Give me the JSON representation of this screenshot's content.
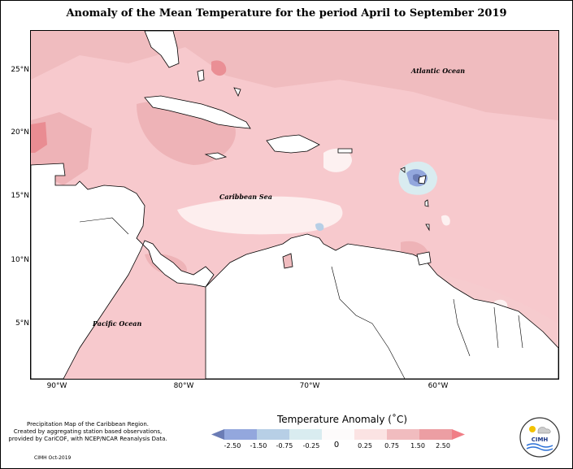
{
  "title": "Anomaly of the Mean Temperature for the period April to September 2019",
  "map": {
    "y_ticks": [
      "25°N",
      "20°N",
      "15°N",
      "10°N",
      "5°N"
    ],
    "x_ticks": [
      "90°W",
      "80°W",
      "70°W",
      "60°W"
    ],
    "labels": {
      "atlantic": "Atlantic Ocean",
      "caribbean": "Caribbean Sea",
      "pacific": "Pacific Ocean"
    },
    "background_color": "#f7c9cd"
  },
  "colorbar": {
    "title": "Temperature Anomaly (˚C)",
    "tick_labels": [
      "-2.50",
      "-1.50",
      "-0.75",
      "-0.25",
      "0",
      "0.25",
      "0.75",
      "1.50",
      "2.50"
    ],
    "colors": [
      "#6b7cb5",
      "#93a7dd",
      "#b7cfe6",
      "#d9ecf0",
      "#fdfbfb",
      "#fbe3e3",
      "#f1bcbf",
      "#ec9ea3",
      "#f07e86"
    ]
  },
  "credit": {
    "lines": [
      "Precipitation Map of the Caribbean Region.",
      "Created by aggregating station based observations,",
      "provided by CariCOF, with NCEP/NCAR Reanalysis Data."
    ],
    "date": "CIMH Oct-2019"
  },
  "logo": {
    "text": "CIMH"
  }
}
